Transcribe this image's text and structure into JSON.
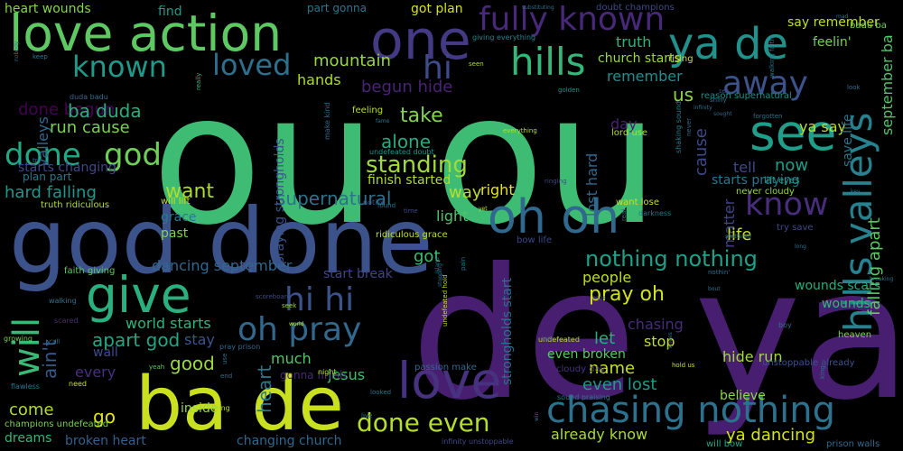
{
  "palette": {
    "background": "#000000",
    "yellow": "#cae11f",
    "lime": "#9fda3a",
    "green": "#4ac16d",
    "teal": "#1fa187",
    "cyan": "#277f8e",
    "blue": "#365c8d",
    "indigo": "#46327e",
    "purple": "#440154"
  },
  "words": [
    {
      "text": "ou ou",
      "color": "#3fbc73"
    },
    {
      "text": "de ya",
      "color": "#481f70"
    },
    {
      "text": "god done",
      "color": "#3b528b"
    },
    {
      "text": "ba de",
      "color": "#c8e020"
    },
    {
      "text": "love action",
      "color": "#5ec962"
    },
    {
      "text": "one",
      "color": "#443983"
    },
    {
      "text": "ya de",
      "color": "#21918c"
    },
    {
      "text": "oh oh",
      "color": "#31688e"
    },
    {
      "text": "give",
      "color": "#2ab07f"
    },
    {
      "text": "love",
      "color": "#46327e"
    },
    {
      "text": "chasing nothing",
      "color": "#2c728e"
    },
    {
      "text": "see",
      "color": "#1f9e89"
    },
    {
      "text": "fully known",
      "color": "#482878"
    },
    {
      "text": "hills",
      "color": "#35b779"
    },
    {
      "text": "hills valleys",
      "color": "#26828e"
    },
    {
      "text": "known",
      "color": "#1f9a8a"
    },
    {
      "text": "loved",
      "color": "#2d708e"
    },
    {
      "text": "hi",
      "color": "#3e4a89"
    },
    {
      "text": "away",
      "color": "#3b528b"
    },
    {
      "text": "done",
      "color": "#22a884"
    },
    {
      "text": "god",
      "color": "#6ece58"
    },
    {
      "text": "know",
      "color": "#472d7b"
    },
    {
      "text": "hi hi",
      "color": "#3b528b"
    },
    {
      "text": "oh pray",
      "color": "#31688e"
    },
    {
      "text": "will",
      "color": "#3aba76"
    },
    {
      "text": "standing",
      "color": "#a0da39"
    },
    {
      "text": "done even",
      "color": "#b5de2b"
    },
    {
      "text": "mountain",
      "color": "#98d83e"
    },
    {
      "text": "nothing nothing",
      "color": "#1fa088"
    },
    {
      "text": "apart god",
      "color": "#22a785"
    },
    {
      "text": "supernatural",
      "color": "#2c728e"
    },
    {
      "text": "pray oh",
      "color": "#d2e21b"
    },
    {
      "text": "alone",
      "color": "#25ab82"
    },
    {
      "text": "take",
      "color": "#84d44b"
    },
    {
      "text": "done begun",
      "color": "#440154"
    },
    {
      "text": "begun hide",
      "color": "#482475"
    },
    {
      "text": "run cause",
      "color": "#7ad151"
    },
    {
      "text": "ba duda",
      "color": "#29af7f"
    },
    {
      "text": "hard falling",
      "color": "#1f988b"
    },
    {
      "text": "want",
      "color": "#addc30"
    },
    {
      "text": "lost hard",
      "color": "#31688e"
    },
    {
      "text": "cause",
      "color": "#3e4989"
    },
    {
      "text": "valleys",
      "color": "#31688e"
    },
    {
      "text": "us",
      "color": "#90d743"
    },
    {
      "text": "truth",
      "color": "#2fb47c"
    },
    {
      "text": "remember",
      "color": "#218e8d"
    },
    {
      "text": "church starts",
      "color": "#9bd93c"
    },
    {
      "text": "heart wounds",
      "color": "#86d549"
    },
    {
      "text": "got plan",
      "color": "#d8e219"
    },
    {
      "text": "part gonna",
      "color": "#2a778e"
    },
    {
      "text": "find",
      "color": "#1e9b8a"
    },
    {
      "text": "say remember",
      "color": "#c2df23"
    },
    {
      "text": "feelin'",
      "color": "#7ad151"
    },
    {
      "text": "ya say",
      "color": "#bddf26"
    },
    {
      "text": "save life",
      "color": "#2c738e"
    },
    {
      "text": "september ba",
      "color": "#52c569"
    },
    {
      "text": "falling apart",
      "color": "#5cc863"
    },
    {
      "text": "now",
      "color": "#1f9f88"
    },
    {
      "text": "tell",
      "color": "#3e4a89"
    },
    {
      "text": "matter",
      "color": "#414487"
    },
    {
      "text": "life",
      "color": "#c5e021"
    },
    {
      "text": "starts praying",
      "color": "#2b758e"
    },
    {
      "text": "right",
      "color": "#e5e419"
    },
    {
      "text": "way",
      "color": "#b8de29"
    },
    {
      "text": "light",
      "color": "#4ec36b"
    },
    {
      "text": "day",
      "color": "#482173"
    },
    {
      "text": "dancing september",
      "color": "#31688e"
    },
    {
      "text": "grace",
      "color": "#2a788e"
    },
    {
      "text": "past",
      "color": "#7fd34e"
    },
    {
      "text": "got",
      "color": "#3dbc74"
    },
    {
      "text": "people",
      "color": "#bade28"
    },
    {
      "text": "wounds scars",
      "color": "#26ad81"
    },
    {
      "text": "hands",
      "color": "#aadc32"
    },
    {
      "text": "world starts",
      "color": "#2fb47c"
    },
    {
      "text": "good",
      "color": "#9dd93b"
    },
    {
      "text": "stay",
      "color": "#3a548c"
    },
    {
      "text": "let",
      "color": "#29af7f"
    },
    {
      "text": "stop",
      "color": "#c0df25"
    },
    {
      "text": "chasing",
      "color": "#472c7a"
    },
    {
      "text": "name",
      "color": "#c5e021"
    },
    {
      "text": "hide run",
      "color": "#a2da37"
    },
    {
      "text": "every",
      "color": "#472f7d"
    },
    {
      "text": "wall",
      "color": "#3e4c8a"
    },
    {
      "text": "much",
      "color": "#56c667"
    },
    {
      "text": "even lost",
      "color": "#1f9a8a"
    },
    {
      "text": "even broken",
      "color": "#5ac864"
    },
    {
      "text": "believe",
      "color": "#8bd646"
    },
    {
      "text": "jesus",
      "color": "#42be71"
    },
    {
      "text": "heart",
      "color": "#2a788e"
    },
    {
      "text": "ain't",
      "color": "#375b8d"
    },
    {
      "text": "go",
      "color": "#e2e418"
    },
    {
      "text": "come",
      "color": "#b0dd2f"
    },
    {
      "text": "inside",
      "color": "#95d840"
    },
    {
      "text": "dreams",
      "color": "#34b679"
    },
    {
      "text": "broken heart",
      "color": "#34608d"
    },
    {
      "text": "changing church",
      "color": "#31688e"
    },
    {
      "text": "already know",
      "color": "#aadc32"
    },
    {
      "text": "ya dancing",
      "color": "#d5e21a"
    },
    {
      "text": "praying strongholds",
      "color": "#3a538b"
    },
    {
      "text": "strongholds start",
      "color": "#2d718e"
    },
    {
      "text": "finish started",
      "color": "#addc30"
    },
    {
      "text": "starts changing",
      "color": "#3f4788"
    },
    {
      "text": "plan part",
      "color": "#2a788e"
    },
    {
      "text": "ridiculous grace",
      "color": "#c2df23"
    },
    {
      "text": "start break",
      "color": "#414487"
    },
    {
      "text": "wounds",
      "color": "#35b779"
    },
    {
      "text": "bow life",
      "color": "#3e4a89"
    },
    {
      "text": "faith giving",
      "color": "#5ec962"
    },
    {
      "text": "duda badu",
      "color": "#2e6e8e"
    },
    {
      "text": "will lift",
      "color": "#c8e020"
    },
    {
      "text": "truth ridiculous",
      "color": "#b5de2b"
    },
    {
      "text": "champions undefeated",
      "color": "#7ad151"
    },
    {
      "text": "gonna finish",
      "color": "#482878"
    },
    {
      "text": "passion make",
      "color": "#31688e"
    },
    {
      "text": "undefeated doubt",
      "color": "#20928c"
    },
    {
      "text": "giving everything",
      "color": "#25848e"
    },
    {
      "text": "doubt champions",
      "color": "#3e4a89"
    },
    {
      "text": "badu ba",
      "color": "#70cf57"
    },
    {
      "text": "rising",
      "color": "#d2e21b"
    },
    {
      "text": "reason supernatural",
      "color": "#228d8d"
    },
    {
      "text": "shaking sound",
      "color": "#287c8e"
    },
    {
      "text": "lift eyes",
      "color": "#1fa188"
    },
    {
      "text": "never cloudy",
      "color": "#90d743"
    },
    {
      "text": "want lose",
      "color": "#c8e020"
    },
    {
      "text": "try save",
      "color": "#3e4a89"
    },
    {
      "text": "heaven",
      "color": "#7fd34e"
    },
    {
      "text": "prison walls",
      "color": "#31688e"
    },
    {
      "text": "unstoppable already",
      "color": "#3b528b"
    },
    {
      "text": "cloudy day",
      "color": "#46337e"
    },
    {
      "text": "will bow",
      "color": "#20a486"
    },
    {
      "text": "infinity unstoppable",
      "color": "#3e4a89"
    },
    {
      "text": "sound praising",
      "color": "#2b758e"
    },
    {
      "text": "undefeated",
      "color": "#addc30"
    },
    {
      "text": "lord use",
      "color": "#b5de2b"
    },
    {
      "text": "feeling",
      "color": "#bade28"
    },
    {
      "text": "notice",
      "color": "#3a548c"
    },
    {
      "text": "darkness",
      "color": "#2c728e"
    },
    {
      "text": "hiding",
      "color": "#bade28"
    },
    {
      "text": "make kind",
      "color": "#31688e"
    },
    {
      "text": "flawless",
      "color": "#2a788e"
    },
    {
      "text": "need",
      "color": "#c5e021"
    },
    {
      "text": "walking",
      "color": "#2d708e"
    },
    {
      "text": "scared",
      "color": "#472d7b"
    },
    {
      "text": "growing",
      "color": "#7ad151"
    },
    {
      "text": "y'all",
      "color": "#2c728e"
    },
    {
      "text": "seek",
      "color": "#9dd93b"
    },
    {
      "text": "scoreboard",
      "color": "#3e4a89"
    },
    {
      "text": "yeah",
      "color": "#5ec962"
    },
    {
      "text": "night",
      "color": "#a5db36"
    },
    {
      "text": "looked",
      "color": "#2c728e"
    },
    {
      "text": "pray prison",
      "color": "#31688e"
    },
    {
      "text": "hold us",
      "color": "#c8e020"
    },
    {
      "text": "undefeated hold",
      "color": "#c0df25"
    },
    {
      "text": "boy",
      "color": "#2e6e8e"
    },
    {
      "text": "nothin'",
      "color": "#2e6e8e"
    },
    {
      "text": "everything",
      "color": "#b5de2b"
    },
    {
      "text": "golden",
      "color": "#20928c"
    },
    {
      "text": "seen",
      "color": "#addc30"
    },
    {
      "text": "keep",
      "color": "#2a788e"
    },
    {
      "text": "really",
      "color": "#35b779"
    },
    {
      "text": "hope",
      "color": "#3e4a89"
    },
    {
      "text": "set",
      "color": "#3e4a89"
    },
    {
      "text": "shiny",
      "color": "#2c728e"
    },
    {
      "text": "sought",
      "color": "#31688e"
    },
    {
      "text": "forgotten",
      "color": "#2c728e"
    },
    {
      "text": "never",
      "color": "#31688e"
    },
    {
      "text": "look",
      "color": "#2c728e"
    },
    {
      "text": "fame",
      "color": "#2c728e"
    },
    {
      "text": "time",
      "color": "#3e4a89"
    },
    {
      "text": "found",
      "color": "#2a788e"
    },
    {
      "text": "ringing",
      "color": "#3e4a89"
    },
    {
      "text": "real",
      "color": "#2c728e"
    },
    {
      "text": "pain",
      "color": "#2c728e"
    },
    {
      "text": "yet",
      "color": "#c0df25"
    },
    {
      "text": "last",
      "color": "#3e4a89"
    },
    {
      "text": "live",
      "color": "#2c728e"
    },
    {
      "text": "end",
      "color": "#2c728e"
    },
    {
      "text": "use",
      "color": "#2c728e"
    },
    {
      "text": "long",
      "color": "#2c728e"
    },
    {
      "text": "king",
      "color": "#2c728e"
    },
    {
      "text": "bout",
      "color": "#2c728e"
    },
    {
      "text": "breaking",
      "color": "#2c728e"
    },
    {
      "text": "nobody",
      "color": "#2c728e"
    },
    {
      "text": "mad",
      "color": "#2c728e"
    },
    {
      "text": "key",
      "color": "#2c728e"
    },
    {
      "text": "walking faith",
      "color": "#2a788e"
    },
    {
      "text": "substituting",
      "color": "#2c728e"
    },
    {
      "text": "infinity",
      "color": "#2c728e"
    },
    {
      "text": "shattered",
      "color": "#2c728e"
    },
    {
      "text": "knees",
      "color": "#2c728e"
    },
    {
      "text": "world",
      "color": "#c0df25"
    },
    {
      "text": "island",
      "color": "#2c728e"
    },
    {
      "text": "stopping",
      "color": "#2c728e"
    },
    {
      "text": "try",
      "color": "#2c728e"
    },
    {
      "text": "win",
      "color": "#2c728e"
    }
  ]
}
